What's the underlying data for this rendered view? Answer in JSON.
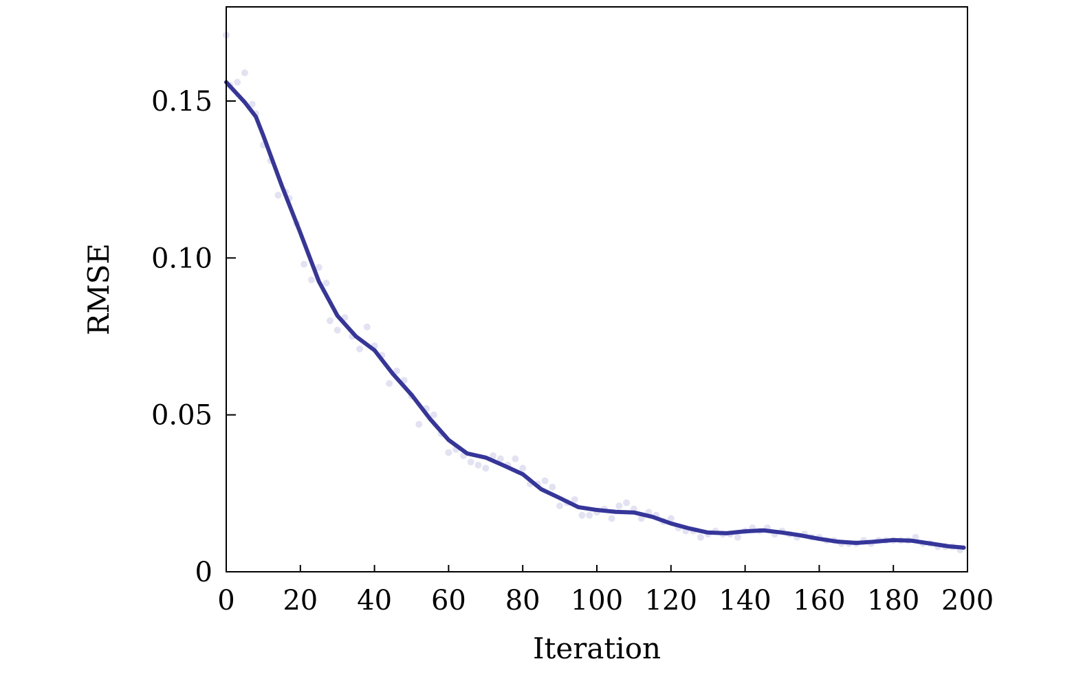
{
  "chart_data": {
    "type": "line",
    "title": "",
    "xlabel": "Iteration",
    "ylabel": "RMSE",
    "xlim": [
      0,
      200
    ],
    "ylim": [
      0,
      0.18
    ],
    "xticks": [
      0,
      20,
      40,
      60,
      80,
      100,
      120,
      140,
      160,
      180,
      200
    ],
    "xtick_labels": [
      "0",
      "20",
      "40",
      "60",
      "80",
      "100",
      "120",
      "140",
      "160",
      "180",
      "200"
    ],
    "yticks": [
      0,
      0.05,
      0.1,
      0.15
    ],
    "ytick_labels": [
      "0",
      "0.05",
      "0.10",
      "0.15"
    ],
    "grid": false,
    "legend": "none",
    "colors": {
      "line": "#35359a",
      "points": "#e2e2f3",
      "axes": "#000000"
    },
    "smoothed": {
      "x": [
        0,
        5,
        8,
        10,
        15,
        20,
        25,
        30,
        35,
        40,
        45,
        50,
        55,
        60,
        65,
        70,
        75,
        80,
        85,
        90,
        95,
        100,
        105,
        110,
        115,
        120,
        125,
        130,
        135,
        140,
        145,
        150,
        155,
        160,
        165,
        170,
        175,
        180,
        185,
        190,
        195,
        199
      ],
      "y": [
        0.156,
        0.1496,
        0.145,
        0.139,
        0.123,
        0.108,
        0.0925,
        0.0816,
        0.075,
        0.0706,
        0.063,
        0.0564,
        0.0487,
        0.042,
        0.0377,
        0.0364,
        0.0338,
        0.0311,
        0.0263,
        0.0235,
        0.0206,
        0.0197,
        0.0191,
        0.0189,
        0.0175,
        0.0154,
        0.0138,
        0.0125,
        0.0123,
        0.0129,
        0.0132,
        0.0125,
        0.0116,
        0.0105,
        0.0096,
        0.0092,
        0.0096,
        0.0101,
        0.0099,
        0.009,
        0.0081,
        0.0077
      ]
    },
    "raw": {
      "x": [
        0,
        1,
        3,
        5,
        7,
        8,
        10,
        12,
        14,
        16,
        17,
        19,
        21,
        23,
        25,
        27,
        28,
        30,
        32,
        34,
        36,
        38,
        40,
        42,
        44,
        46,
        48,
        50,
        52,
        54,
        56,
        58,
        60,
        62,
        64,
        66,
        68,
        70,
        72,
        74,
        76,
        78,
        80,
        82,
        84,
        86,
        88,
        90,
        92,
        94,
        96,
        98,
        100,
        102,
        104,
        106,
        108,
        110,
        112,
        114,
        116,
        118,
        120,
        122,
        124,
        126,
        128,
        130,
        132,
        134,
        136,
        138,
        140,
        142,
        144,
        146,
        148,
        150,
        152,
        154,
        156,
        158,
        160,
        162,
        164,
        166,
        168,
        170,
        172,
        174,
        176,
        178,
        180,
        182,
        184,
        186,
        188,
        190,
        192,
        194,
        196,
        198
      ],
      "y": [
        0.171,
        0.155,
        0.156,
        0.159,
        0.149,
        0.146,
        0.136,
        0.131,
        0.12,
        0.121,
        0.119,
        0.111,
        0.098,
        0.093,
        0.097,
        0.092,
        0.08,
        0.077,
        0.081,
        0.075,
        0.071,
        0.078,
        0.072,
        0.069,
        0.06,
        0.064,
        0.061,
        0.056,
        0.047,
        0.052,
        0.05,
        0.044,
        0.038,
        0.039,
        0.037,
        0.035,
        0.034,
        0.033,
        0.037,
        0.036,
        0.034,
        0.036,
        0.033,
        0.028,
        0.028,
        0.029,
        0.027,
        0.021,
        0.022,
        0.023,
        0.018,
        0.018,
        0.019,
        0.02,
        0.017,
        0.021,
        0.022,
        0.02,
        0.017,
        0.019,
        0.018,
        0.016,
        0.017,
        0.014,
        0.013,
        0.013,
        0.011,
        0.012,
        0.013,
        0.012,
        0.012,
        0.011,
        0.013,
        0.014,
        0.013,
        0.014,
        0.012,
        0.013,
        0.012,
        0.011,
        0.012,
        0.011,
        0.011,
        0.01,
        0.01,
        0.009,
        0.009,
        0.009,
        0.01,
        0.009,
        0.01,
        0.01,
        0.01,
        0.01,
        0.01,
        0.011,
        0.009,
        0.009,
        0.008,
        0.008,
        0.008,
        0.007
      ]
    }
  }
}
